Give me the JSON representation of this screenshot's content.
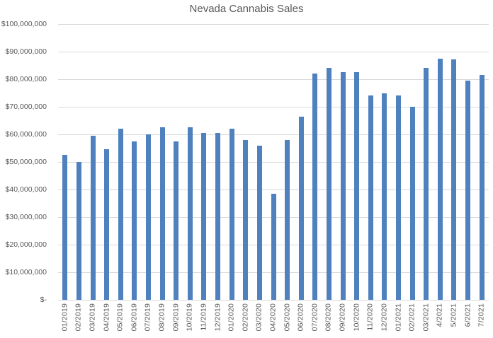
{
  "chart_data": {
    "type": "bar",
    "title": "Nevada Cannabis Sales",
    "xlabel": "",
    "ylabel": "",
    "ylim": [
      0,
      100000000
    ],
    "grid": true,
    "legend": false,
    "categories": [
      "01/2019",
      "02/2019",
      "03/2019",
      "04/2019",
      "05/2019",
      "06/2019",
      "07/2019",
      "08/2019",
      "09/2019",
      "10/2019",
      "11/2019",
      "12/2019",
      "01/2020",
      "02/2020",
      "03/2020",
      "04/2020",
      "05/2020",
      "06/2020",
      "07/2020",
      "08/2020",
      "09/2020",
      "10/2020",
      "11/2020",
      "12/2020",
      "01/2021",
      "02/2021",
      "03/2021",
      "4/2021",
      "5/2021",
      "6/2021",
      "7/2021"
    ],
    "values": [
      52500000,
      50000000,
      59500000,
      54500000,
      62000000,
      57500000,
      60000000,
      62500000,
      57500000,
      62500000,
      60500000,
      60500000,
      62000000,
      58000000,
      56000000,
      38500000,
      58000000,
      66500000,
      82000000,
      84000000,
      82500000,
      82500000,
      74000000,
      75000000,
      74000000,
      70000000,
      84000000,
      87500000,
      87200000,
      79500000,
      81500000
    ],
    "y_ticks": [
      {
        "value": 0,
        "label": "$-"
      },
      {
        "value": 10000000,
        "label": "$10,000,000"
      },
      {
        "value": 20000000,
        "label": "$20,000,000"
      },
      {
        "value": 30000000,
        "label": "$30,000,000"
      },
      {
        "value": 40000000,
        "label": "$40,000,000"
      },
      {
        "value": 50000000,
        "label": "$50,000,000"
      },
      {
        "value": 60000000,
        "label": "$60,000,000"
      },
      {
        "value": 70000000,
        "label": "$70,000,000"
      },
      {
        "value": 80000000,
        "label": "$80,000,000"
      },
      {
        "value": 90000000,
        "label": "$90,000,000"
      },
      {
        "value": 100000000,
        "label": "$100,000,000"
      }
    ],
    "colors": {
      "bar": "#4E81BD",
      "gridline": "#D9D9D9",
      "axis_text": "#595959",
      "title_text": "#595959",
      "background": "#FFFFFF"
    }
  }
}
